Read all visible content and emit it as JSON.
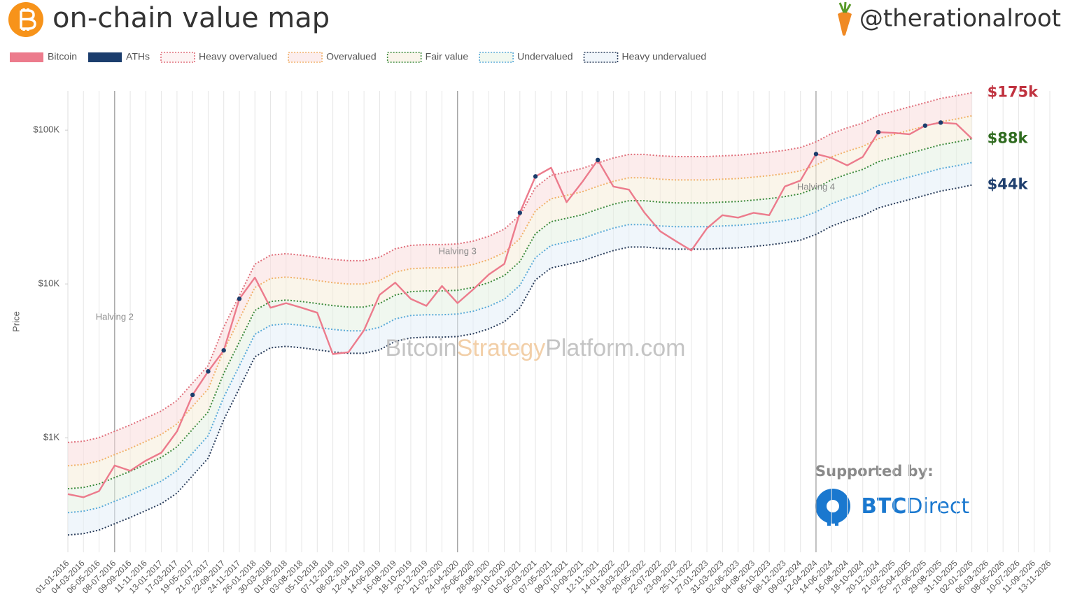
{
  "chart_data": {
    "type": "line",
    "title": "on-chain value map",
    "handle": "@therationalroot",
    "y_label": "Price",
    "log_scale": true,
    "x_grid": true,
    "grid": false,
    "legend": "top-left",
    "ylim": [
      180,
      180000
    ],
    "yticks": [
      {
        "value": 1000,
        "label": "$1K"
      },
      {
        "value": 10000,
        "label": "$10K"
      },
      {
        "value": 100000,
        "label": "$100K"
      }
    ],
    "categories": [
      "01-01-2016",
      "04-03-2016",
      "06-05-2016",
      "08-07-2016",
      "09-09-2016",
      "11-11-2016",
      "13-01-2017",
      "17-03-2017",
      "19-05-2017",
      "21-07-2017",
      "22-09-2017",
      "24-11-2017",
      "26-01-2018",
      "30-03-2018",
      "01-06-2018",
      "03-08-2018",
      "05-10-2018",
      "07-12-2018",
      "08-02-2019",
      "12-04-2019",
      "14-06-2019",
      "16-08-2019",
      "18-10-2019",
      "20-12-2019",
      "21-02-2020",
      "24-04-2020",
      "26-06-2020",
      "28-08-2020",
      "30-10-2020",
      "01-01-2021",
      "05-03-2021",
      "07-05-2021",
      "09-07-2021",
      "10-09-2021",
      "12-11-2021",
      "14-01-2022",
      "18-03-2022",
      "20-05-2022",
      "22-07-2022",
      "23-09-2022",
      "25-11-2022",
      "27-01-2023",
      "31-03-2023",
      "02-06-2023",
      "04-08-2023",
      "06-10-2023",
      "08-12-2023",
      "09-02-2024",
      "12-04-2024",
      "14-06-2024",
      "16-08-2024",
      "18-10-2024",
      "20-12-2024",
      "21-02-2025",
      "25-04-2025",
      "27-06-2025",
      "29-08-2025",
      "31-10-2025",
      "02-01-2026",
      "06-03-2026",
      "08-05-2026",
      "10-07-2026",
      "11-09-2026",
      "13-11-2026"
    ],
    "series": [
      {
        "name": "Bitcoin",
        "color": "#ec7b8c",
        "style": "solid",
        "values": [
          430,
          410,
          450,
          660,
          610,
          710,
          800,
          1100,
          1900,
          2700,
          3700,
          8000,
          11000,
          7000,
          7500,
          7000,
          6500,
          3500,
          3600,
          5000,
          8500,
          10200,
          8000,
          7200,
          9700,
          7500,
          9200,
          11500,
          13500,
          29000,
          50000,
          57000,
          34000,
          46000,
          64000,
          43000,
          41000,
          29000,
          22000,
          19000,
          16500,
          23000,
          28000,
          27000,
          29000,
          28000,
          43000,
          47000,
          70000,
          66000,
          59000,
          67000,
          97000,
          96000,
          94000,
          107000,
          112000,
          110000,
          88000,
          null,
          null,
          null,
          null,
          null
        ]
      },
      {
        "name": "ATHs",
        "color": "#1b3d6d",
        "style": "points",
        "values": [
          null,
          null,
          null,
          null,
          null,
          null,
          null,
          null,
          1900,
          2700,
          3700,
          8000,
          null,
          null,
          null,
          null,
          null,
          null,
          null,
          null,
          null,
          null,
          null,
          null,
          null,
          null,
          null,
          null,
          null,
          29000,
          50000,
          null,
          null,
          null,
          64000,
          null,
          null,
          null,
          null,
          null,
          null,
          null,
          null,
          null,
          null,
          null,
          null,
          null,
          70000,
          null,
          null,
          null,
          97000,
          null,
          null,
          107000,
          112000,
          null,
          null,
          null,
          null,
          null,
          null,
          null
        ]
      },
      {
        "name": "Heavy overvalued",
        "color": "#e0707c",
        "style": "dotted",
        "end_label": "$175k",
        "label_color": "#c0323f",
        "values": [
          932,
          950,
          1002,
          1102,
          1210,
          1344,
          1492,
          1746,
          2268,
          2944,
          5240,
          8390,
          13440,
          15380,
          15720,
          15380,
          14920,
          14460,
          14160,
          14160,
          14920,
          16920,
          17820,
          18020,
          18020,
          18200,
          18980,
          20400,
          22700,
          27940,
          42480,
          50800,
          53480,
          56360,
          61240,
          65920,
          69500,
          69500,
          68080,
          67320,
          67320,
          67320,
          68080,
          68720,
          70160,
          71780,
          73960,
          77100,
          83960,
          95060,
          103520,
          111180,
          124740,
          133060,
          141580,
          150680,
          160700,
          167500,
          175000,
          null,
          null,
          null,
          null,
          null
        ]
      },
      {
        "name": "Overvalued",
        "color": "#f1b26a",
        "style": "dotted",
        "band_color": "#f9dcdc",
        "values": [
          657,
          670,
          706,
          777,
          853,
          948,
          1052,
          1231,
          1599,
          2076,
          3694,
          5915,
          9475,
          10843,
          11083,
          10843,
          10519,
          10194,
          9983,
          9983,
          10519,
          11929,
          12563,
          12704,
          12704,
          12831,
          13381,
          14382,
          16004,
          19698,
          29948,
          35814,
          37703,
          39734,
          43174,
          46474,
          48998,
          48998,
          47996,
          47461,
          47461,
          47461,
          47996,
          48448,
          49463,
          50605,
          52142,
          54356,
          59192,
          67017,
          72982,
          78382,
          87942,
          93807,
          99814,
          106229,
          113294,
          118088,
          124000,
          null,
          null,
          null,
          null,
          null
        ]
      },
      {
        "name": "Fair value",
        "color": "#3d8b3d",
        "style": "dotted",
        "band_color": "#f6ecd8",
        "end_label": "$88k",
        "label_color": "#2f6b1f",
        "values": [
          466,
          475,
          501,
          551,
          605,
          672,
          746,
          873,
          1134,
          1472,
          2620,
          4195,
          6720,
          7690,
          7860,
          7690,
          7460,
          7230,
          7080,
          7080,
          7460,
          8460,
          8910,
          9010,
          9010,
          9100,
          9490,
          10200,
          11350,
          13970,
          21240,
          25400,
          26740,
          28180,
          30620,
          32960,
          34750,
          34750,
          34040,
          33660,
          33660,
          33660,
          34040,
          34360,
          35080,
          35890,
          36980,
          38550,
          41980,
          47530,
          51760,
          55590,
          62370,
          66530,
          70790,
          75340,
          80350,
          83750,
          88000,
          null,
          null,
          null,
          null,
          null
        ]
      },
      {
        "name": "Undervalued",
        "color": "#5aaad8",
        "style": "dotted",
        "band_color": "#e4f1e2",
        "values": [
          326,
          333,
          351,
          386,
          424,
          470,
          522,
          611,
          794,
          1030,
          1834,
          2937,
          4704,
          5383,
          5502,
          5383,
          5222,
          5061,
          4956,
          4956,
          5222,
          5922,
          6237,
          6307,
          6307,
          6370,
          6643,
          7140,
          7945,
          9779,
          14868,
          17780,
          18718,
          19726,
          21434,
          23072,
          24325,
          24325,
          23828,
          23562,
          23562,
          23562,
          23828,
          24052,
          24556,
          25123,
          25886,
          26985,
          29386,
          33271,
          36232,
          38913,
          43659,
          46571,
          49553,
          52738,
          56245,
          58625,
          61600,
          null,
          null,
          null,
          null,
          null
        ]
      },
      {
        "name": "Heavy undervalued",
        "color": "#2b3e5c",
        "style": "dotted",
        "band_color": "#e3eef8",
        "end_label": "$44k",
        "label_color": "#1f3f6e",
        "values": [
          233,
          238,
          251,
          276,
          303,
          336,
          373,
          437,
          567,
          736,
          1310,
          2098,
          3360,
          3845,
          3930,
          3845,
          3730,
          3615,
          3540,
          3540,
          3730,
          4230,
          4455,
          4505,
          4505,
          4550,
          4745,
          5100,
          5675,
          6985,
          10620,
          12700,
          13370,
          14090,
          15310,
          16480,
          17375,
          17375,
          17020,
          16830,
          16830,
          16830,
          17020,
          17180,
          17540,
          17945,
          18490,
          19275,
          20990,
          23765,
          25880,
          27795,
          31185,
          33265,
          35395,
          37670,
          40175,
          41875,
          44000,
          null,
          null,
          null,
          null,
          null
        ]
      }
    ],
    "annotations": [
      {
        "text": "Halving 2",
        "at": "08-07-2016"
      },
      {
        "text": "Halving 3",
        "at": "24-04-2020"
      },
      {
        "text": "Halving 4",
        "at": "12-04-2024"
      }
    ],
    "watermark": [
      "Bitcoin",
      "Strategy",
      "Platform.com"
    ],
    "sponsor": {
      "label": "Supported by:",
      "brand_bold": "BTC",
      "brand": "Direct"
    }
  }
}
